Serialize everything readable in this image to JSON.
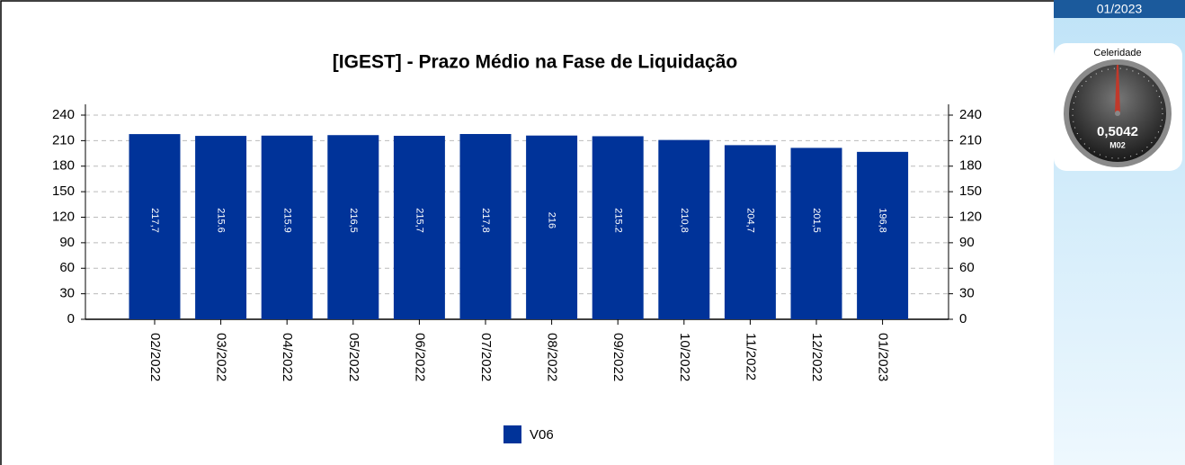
{
  "chart_data": {
    "type": "bar",
    "title": "[IGEST]  - Prazo Médio na Fase de Liquidação",
    "categories": [
      "02/2022",
      "03/2022",
      "04/2022",
      "05/2022",
      "06/2022",
      "07/2022",
      "08/2022",
      "09/2022",
      "10/2022",
      "11/2022",
      "12/2022",
      "01/2023"
    ],
    "series": [
      {
        "name": "V06",
        "color": "#003399",
        "values": [
          217.7,
          215.6,
          215.9,
          216.5,
          215.7,
          217.8,
          216,
          215.2,
          210.8,
          204.7,
          201.5,
          196.8
        ],
        "value_labels": [
          "217,7",
          "215.6",
          "215.9",
          "216,5",
          "215,7",
          "217,8",
          "216",
          "215.2",
          "210,8",
          "204,7",
          "201,5",
          "196,8"
        ]
      }
    ],
    "ylim": [
      0,
      240
    ],
    "yticks": [
      0,
      30,
      60,
      90,
      120,
      150,
      180,
      210,
      240
    ],
    "y2lim": [
      0,
      240
    ],
    "y2ticks": [
      0,
      30,
      60,
      90,
      120,
      150,
      180,
      210,
      240
    ],
    "grid": true,
    "legend": "bottom"
  },
  "side_panel": {
    "period": "01/2023",
    "gauge": {
      "title": "Celeridade",
      "value": "0,5042",
      "code": "M02"
    }
  }
}
